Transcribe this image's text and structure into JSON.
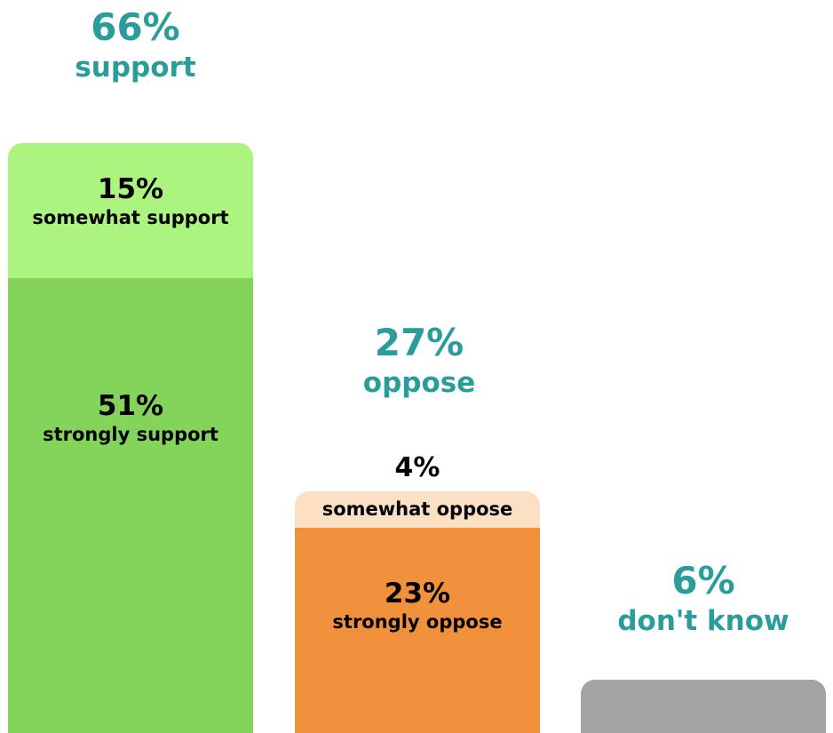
{
  "chart_data": {
    "type": "bar",
    "stacked": true,
    "grid": false,
    "axes": false,
    "ylim": [
      0,
      66
    ],
    "colors": {
      "label_teal": "#2a9d9a",
      "strongly_support": "#84d45c",
      "somewhat_support": "#aaf47f",
      "strongly_oppose": "#f2913b",
      "somewhat_oppose": "#fce0c4",
      "dont_know": "#a3a3a3",
      "segment_text": "#000000"
    },
    "bars": [
      {
        "total_value": "66%",
        "total_label": "support",
        "segments": [
          {
            "value": 51,
            "value_label": "51%",
            "label": "strongly support",
            "color_key": "strongly_support"
          },
          {
            "value": 15,
            "value_label": "15%",
            "label": "somewhat support",
            "color_key": "somewhat_support"
          }
        ]
      },
      {
        "total_value": "27%",
        "total_label": "oppose",
        "segments": [
          {
            "value": 23,
            "value_label": "23%",
            "label": "strongly oppose",
            "color_key": "strongly_oppose"
          },
          {
            "value": 4,
            "value_label": "4%",
            "label": "somewhat oppose",
            "color_key": "somewhat_oppose"
          }
        ]
      },
      {
        "total_value": "6%",
        "total_label": "don't know",
        "segments": [
          {
            "value": 6,
            "value_label": "",
            "label": "",
            "color_key": "dont_know"
          }
        ]
      }
    ]
  }
}
